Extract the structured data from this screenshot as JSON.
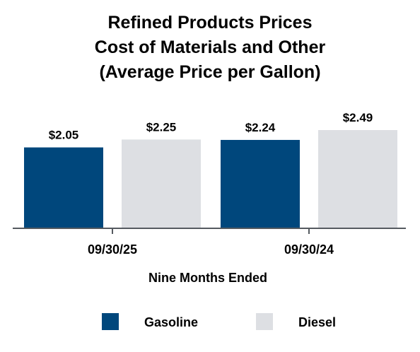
{
  "chart_data": {
    "type": "bar",
    "title": [
      "Refined Products Prices",
      "Cost of Materials and Other",
      "(Average Price per Gallon)"
    ],
    "xlabel": "Nine Months Ended",
    "ylabel": "",
    "categories": [
      "09/30/25",
      "09/30/24"
    ],
    "series": [
      {
        "name": "Gasoline",
        "color": "#00477c",
        "values": [
          2.05,
          2.24
        ],
        "labels": [
          "$2.05",
          "$2.24"
        ]
      },
      {
        "name": "Diesel",
        "color": "#dddfe3",
        "values": [
          2.25,
          2.49
        ],
        "labels": [
          "$2.25",
          "$2.49"
        ]
      }
    ],
    "ylim": [
      0,
      2.49
    ],
    "grid": false,
    "legend_position": "bottom",
    "axis_color": "#555a60"
  }
}
